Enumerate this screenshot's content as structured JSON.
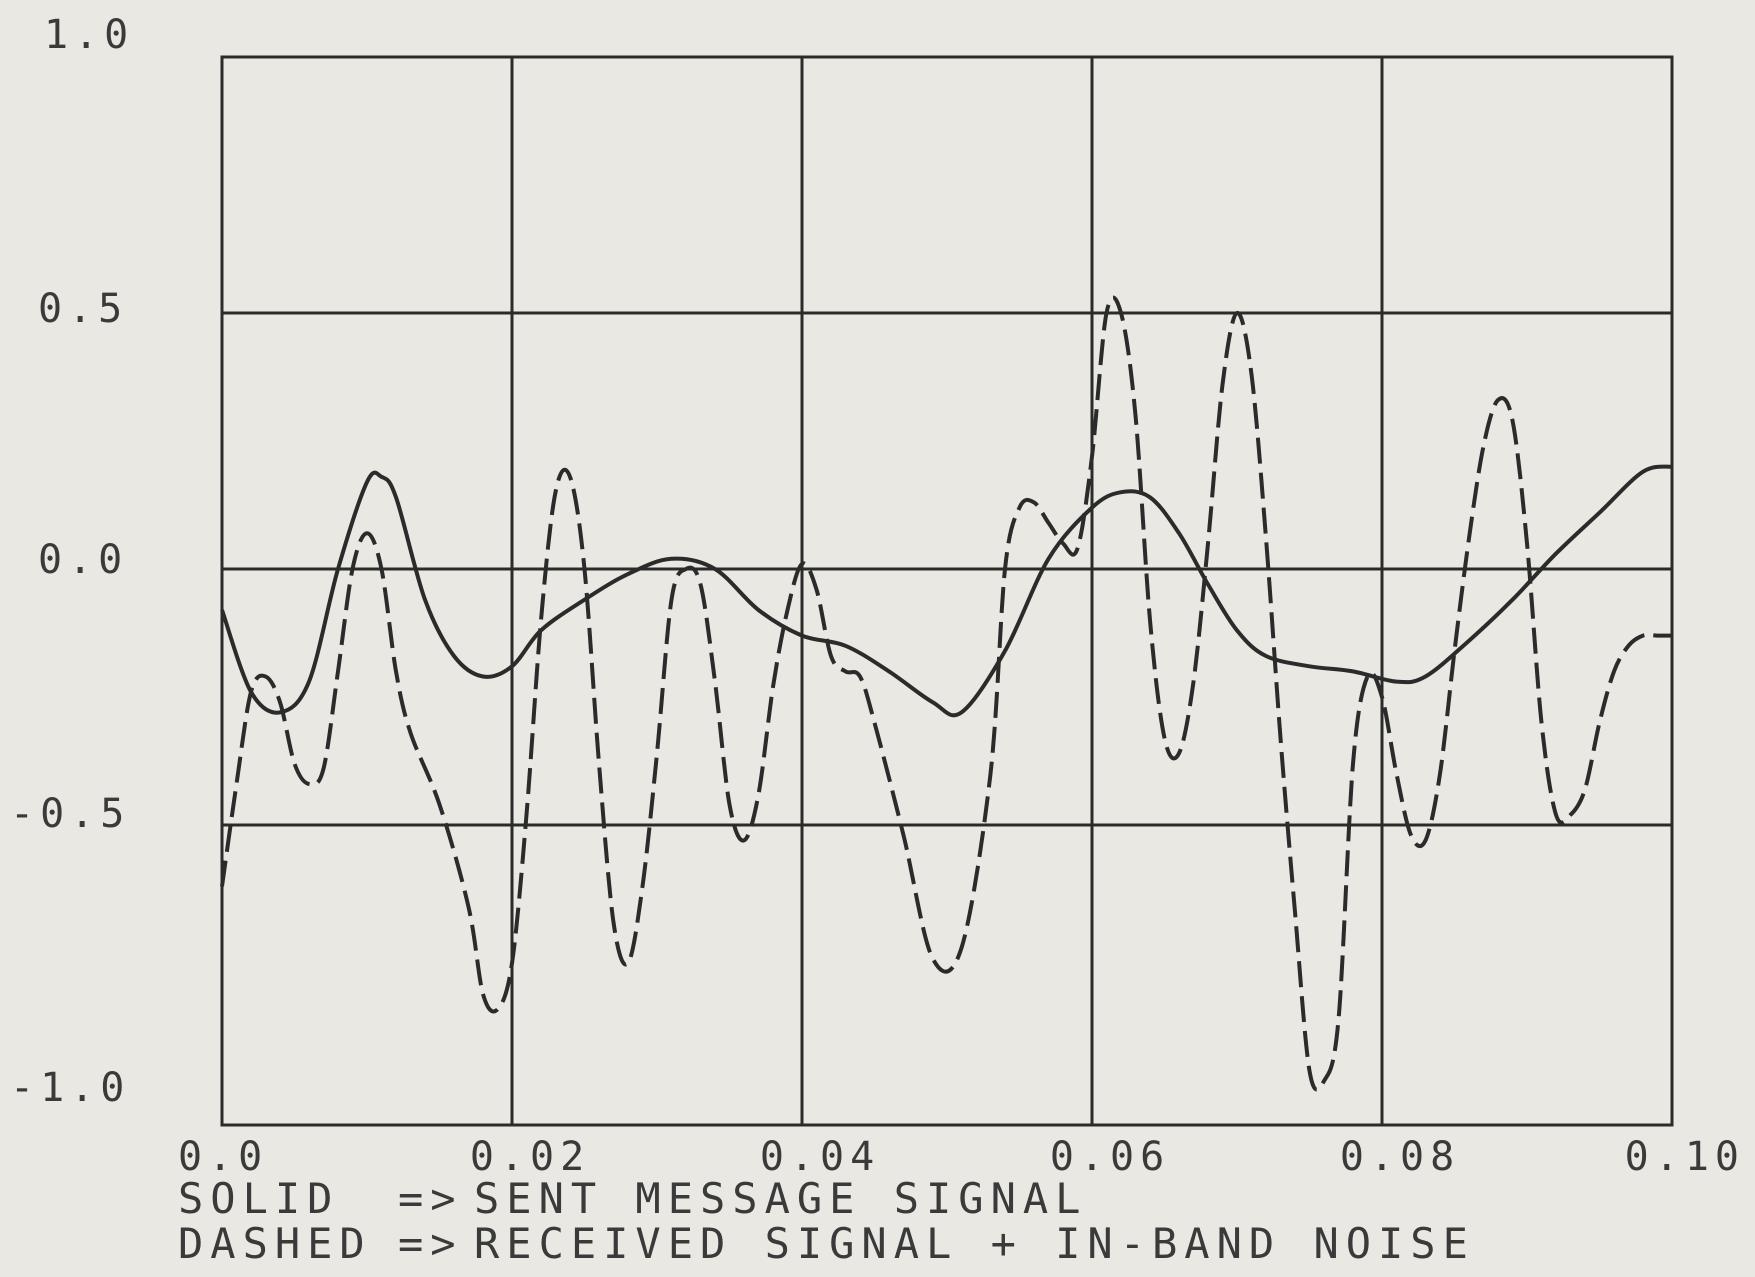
{
  "chart_data": {
    "type": "line",
    "title": "",
    "xlabel": "",
    "ylabel": "",
    "xlim": [
      0.0,
      0.1
    ],
    "ylim": [
      -1.0,
      1.0
    ],
    "grid": true,
    "x_ticks": [
      0.0,
      0.02,
      0.04,
      0.06,
      0.08,
      0.1
    ],
    "x_tick_labels": [
      "0.0",
      "0.02",
      "0.04",
      "0.06",
      "0.08",
      "0.10"
    ],
    "y_ticks": [
      1.0,
      0.5,
      0.0,
      -0.5,
      -1.0
    ],
    "y_tick_labels": [
      "1.0",
      "0.5",
      "0.0",
      "-0.5",
      "-1.0"
    ],
    "legend": [
      {
        "key": "SOLID",
        "arrow": "=>",
        "text": "SENT MESSAGE SIGNAL",
        "style": "solid"
      },
      {
        "key": "DASHED",
        "arrow": "=>",
        "text": "RECEIVED SIGNAL + IN-BAND NOISE",
        "style": "dashed"
      }
    ],
    "legend_placement": "bottom-left",
    "series": [
      {
        "style": "solid",
        "x": [
          0.0,
          0.002,
          0.004,
          0.006,
          0.008,
          0.01,
          0.011,
          0.012,
          0.014,
          0.016,
          0.018,
          0.02,
          0.022,
          0.025,
          0.028,
          0.031,
          0.034,
          0.037,
          0.04,
          0.043,
          0.046,
          0.049,
          0.051,
          0.054,
          0.057,
          0.06,
          0.062,
          0.064,
          0.066,
          0.068,
          0.07,
          0.072,
          0.075,
          0.078,
          0.081,
          0.083,
          0.086,
          0.089,
          0.092,
          0.095,
          0.098,
          0.1
        ],
        "y": [
          -0.08,
          -0.24,
          -0.28,
          -0.22,
          0.0,
          0.17,
          0.18,
          0.14,
          -0.06,
          -0.17,
          -0.21,
          -0.19,
          -0.12,
          -0.06,
          -0.01,
          0.02,
          0.0,
          -0.08,
          -0.13,
          -0.15,
          -0.2,
          -0.26,
          -0.28,
          -0.16,
          0.02,
          0.12,
          0.15,
          0.14,
          0.07,
          -0.03,
          -0.12,
          -0.17,
          -0.19,
          -0.2,
          -0.22,
          -0.21,
          -0.14,
          -0.06,
          0.03,
          0.11,
          0.19,
          0.2
        ]
      },
      {
        "style": "dashed",
        "x": [
          0.0,
          0.001,
          0.002,
          0.003,
          0.004,
          0.005,
          0.006,
          0.007,
          0.008,
          0.009,
          0.01,
          0.011,
          0.012,
          0.013,
          0.015,
          0.017,
          0.018,
          0.019,
          0.02,
          0.021,
          0.022,
          0.023,
          0.024,
          0.025,
          0.026,
          0.027,
          0.028,
          0.029,
          0.03,
          0.031,
          0.032,
          0.033,
          0.034,
          0.035,
          0.036,
          0.037,
          0.038,
          0.039,
          0.04,
          0.041,
          0.042,
          0.043,
          0.044,
          0.045,
          0.047,
          0.049,
          0.051,
          0.053,
          0.054,
          0.055,
          0.056,
          0.057,
          0.058,
          0.059,
          0.06,
          0.061,
          0.062,
          0.063,
          0.064,
          0.065,
          0.066,
          0.067,
          0.068,
          0.069,
          0.07,
          0.071,
          0.072,
          0.073,
          0.074,
          0.075,
          0.076,
          0.077,
          0.078,
          0.079,
          0.08,
          0.081,
          0.082,
          0.083,
          0.084,
          0.085,
          0.086,
          0.087,
          0.088,
          0.089,
          0.09,
          0.091,
          0.092,
          0.093,
          0.094,
          0.095,
          0.096,
          0.097,
          0.098,
          0.099,
          0.1
        ],
        "y": [
          -0.62,
          -0.42,
          -0.24,
          -0.21,
          -0.26,
          -0.38,
          -0.42,
          -0.39,
          -0.2,
          0.0,
          0.07,
          0.0,
          -0.2,
          -0.32,
          -0.46,
          -0.66,
          -0.83,
          -0.86,
          -0.77,
          -0.48,
          -0.1,
          0.15,
          0.18,
          0.0,
          -0.38,
          -0.69,
          -0.77,
          -0.62,
          -0.36,
          -0.06,
          0.0,
          -0.03,
          -0.22,
          -0.46,
          -0.53,
          -0.44,
          -0.23,
          -0.08,
          0.01,
          -0.04,
          -0.17,
          -0.2,
          -0.21,
          -0.3,
          -0.52,
          -0.76,
          -0.74,
          -0.4,
          0.0,
          0.12,
          0.13,
          0.09,
          0.05,
          0.04,
          0.22,
          0.5,
          0.5,
          0.3,
          -0.1,
          -0.33,
          -0.36,
          -0.22,
          0.05,
          0.36,
          0.5,
          0.38,
          0.06,
          -0.33,
          -0.67,
          -0.98,
          -1.0,
          -0.88,
          -0.38,
          -0.21,
          -0.25,
          -0.4,
          -0.52,
          -0.53,
          -0.4,
          -0.16,
          0.06,
          0.24,
          0.33,
          0.29,
          0.05,
          -0.3,
          -0.48,
          -0.48,
          -0.43,
          -0.3,
          -0.2,
          -0.15,
          -0.13,
          -0.13,
          -0.13
        ]
      }
    ]
  }
}
